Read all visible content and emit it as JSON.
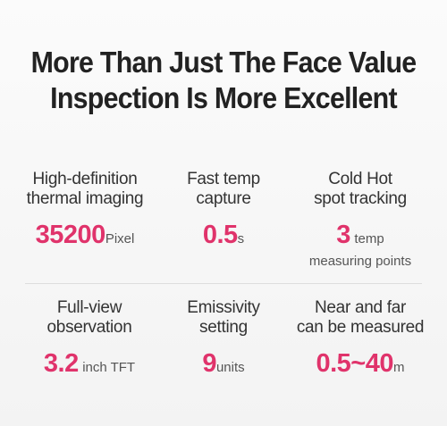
{
  "headline": {
    "line1": "More Than Just The Face Value",
    "line2": "Inspection Is More Excellent"
  },
  "features_row1": [
    {
      "label_line1": "High-definition",
      "label_line2": "thermal imaging",
      "value": "35200",
      "unit": "Pixel"
    },
    {
      "label_line1": "Fast temp",
      "label_line2": "capture",
      "value": "0.5",
      "unit": "s"
    },
    {
      "label_line1": "Cold Hot",
      "label_line2": "spot tracking",
      "value": "3",
      "unit": "temp",
      "unit_line2": "measuring points"
    }
  ],
  "features_row2": [
    {
      "label_line1": "Full-view",
      "label_line2": "observation",
      "value": "3.2",
      "unit": "inch TFT"
    },
    {
      "label_line1": "Emissivity",
      "label_line2": "setting",
      "value": "9",
      "unit": "units"
    },
    {
      "label_line1": "Near and far",
      "label_line2": "can be measured",
      "value": "0.5~40",
      "unit": "m"
    }
  ],
  "colors": {
    "accent": "#e0336b",
    "text": "#333333",
    "background": "#f7f7f7"
  }
}
